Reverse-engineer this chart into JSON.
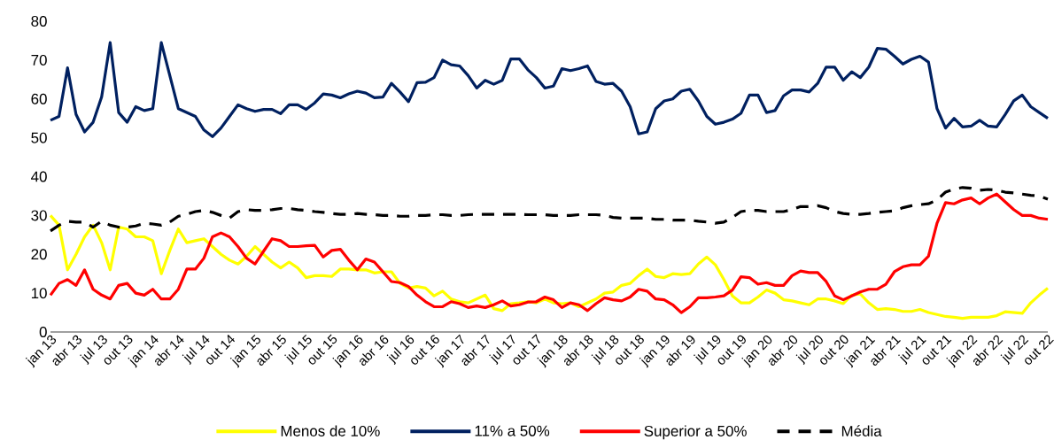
{
  "chart_data": {
    "type": "line",
    "categories": [
      "jan 13",
      null,
      null,
      "abr 13",
      null,
      null,
      "jul 13",
      null,
      null,
      "out 13",
      null,
      null,
      "jan 14",
      null,
      null,
      "abr 14",
      null,
      null,
      "jul 14",
      null,
      null,
      "out 14",
      null,
      null,
      "jan 15",
      null,
      null,
      "abr 15",
      null,
      null,
      "jul 15",
      null,
      null,
      "out 15",
      null,
      null,
      "jan 16",
      null,
      null,
      "abr 16",
      null,
      null,
      "jul 16",
      null,
      null,
      "out 16",
      null,
      null,
      "jan 17",
      null,
      null,
      "abr 17",
      null,
      null,
      "jul 17",
      null,
      null,
      "out 17",
      null,
      null,
      "jan 18",
      null,
      null,
      "abr 18",
      null,
      null,
      "jul 18",
      null,
      null,
      "out 18",
      null,
      null,
      "jan 19",
      null,
      null,
      "abr 19",
      null,
      null,
      "jul 19",
      null,
      null,
      "out 19",
      null,
      null,
      "jan 20",
      null,
      null,
      "abr 20",
      null,
      null,
      "jul 20",
      null,
      null,
      "out 20",
      null,
      null,
      "jan 21",
      null,
      null,
      "abr 21",
      null,
      null,
      "jul 21",
      null,
      null,
      "out 21",
      null,
      null,
      "jan 22",
      null,
      null,
      "abr 22",
      null,
      null,
      "jul 22",
      null,
      null,
      "out 22"
    ],
    "series": [
      {
        "name": "Menos de 10%",
        "color": "#ffff00",
        "line_style": "solid",
        "values": [
          30,
          27.5,
          16,
          20,
          24.5,
          27.5,
          23,
          16,
          27,
          26.5,
          24.5,
          24.5,
          23.5,
          15,
          21,
          26.5,
          23,
          23.5,
          24,
          22,
          20,
          18.5,
          17.5,
          19.5,
          22,
          20,
          18,
          16.5,
          18,
          16.5,
          14,
          14.5,
          14.5,
          14.3,
          16.2,
          16.2,
          16,
          16,
          15.2,
          15.5,
          15.5,
          12.5,
          11.3,
          11.7,
          11.3,
          9.3,
          10.5,
          8.5,
          7.8,
          7.5,
          8.5,
          9.5,
          6,
          5.5,
          7.3,
          7.5,
          7.8,
          7.5,
          8.5,
          7.5,
          7.3,
          7.5,
          6.5,
          7.5,
          8.5,
          10,
          10.3,
          12,
          12.5,
          14.5,
          16.2,
          14.3,
          14,
          15,
          14.8,
          15,
          17.5,
          19.3,
          17.3,
          13.5,
          9.3,
          7.5,
          7.5,
          9,
          10.8,
          10,
          8.3,
          8,
          7.5,
          7,
          8.5,
          8.5,
          8,
          7.3,
          9.5,
          9.8,
          7.5,
          5.8,
          6,
          5.8,
          5.3,
          5.3,
          5.8,
          5,
          4.5,
          4,
          3.8,
          3.5,
          3.8,
          3.8,
          3.8,
          4.2,
          5.2,
          5,
          4.8,
          7.5,
          9.5,
          11.3
        ]
      },
      {
        "name": "11% a 50%",
        "color": "#002060",
        "line_style": "solid",
        "values": [
          54.5,
          55.5,
          68,
          56,
          51.5,
          54,
          60.5,
          74.5,
          56.5,
          54,
          58,
          57,
          57.5,
          74.5,
          66,
          57.5,
          56.5,
          55.5,
          52,
          50.3,
          52.5,
          55.5,
          58.5,
          57.5,
          56.8,
          57.3,
          57.3,
          56.2,
          58.5,
          58.5,
          57.3,
          59,
          61.3,
          61,
          60.3,
          61.3,
          62,
          61.5,
          60.3,
          60.5,
          64,
          61.8,
          59.3,
          64.2,
          64.3,
          65.5,
          70,
          68.8,
          68.5,
          66,
          62.8,
          64.8,
          63.8,
          64.8,
          70.3,
          70.3,
          67.5,
          65.5,
          62.8,
          63.3,
          67.8,
          67.3,
          67.8,
          68.5,
          64.5,
          63.8,
          64,
          62,
          58,
          51,
          51.5,
          57.5,
          59.5,
          60,
          62,
          62.5,
          59.5,
          55.5,
          53.5,
          54,
          54.8,
          56.3,
          61,
          61,
          56.5,
          57,
          60.8,
          62.3,
          62.3,
          61.8,
          64,
          68.2,
          68.2,
          64.8,
          67,
          65.5,
          68.2,
          73,
          72.8,
          71,
          69,
          70.2,
          71,
          69.5,
          57.5,
          52.5,
          55,
          52.8,
          53,
          54.5,
          53,
          52.8,
          56,
          59.5,
          61,
          58,
          56.5,
          55
        ]
      },
      {
        "name": "Superior a 50%",
        "color": "#ff0000",
        "line_style": "solid",
        "values": [
          9.5,
          12.5,
          13.5,
          12,
          16,
          11,
          9.5,
          8.5,
          12,
          12.5,
          10,
          9.5,
          11,
          8.5,
          8.5,
          11,
          16.2,
          16.2,
          19,
          24.5,
          25.5,
          24.5,
          22,
          19,
          17.5,
          20.8,
          24,
          23.5,
          22,
          22,
          22.2,
          22.3,
          19.3,
          21,
          21.3,
          18.5,
          16,
          18.8,
          18,
          15.5,
          13,
          12.7,
          11.7,
          9.5,
          7.8,
          6.5,
          6.5,
          7.8,
          7.3,
          6.3,
          6.7,
          6.3,
          7,
          8,
          6.7,
          7,
          7.7,
          7.8,
          9,
          8.3,
          6.3,
          7.5,
          7,
          5.5,
          7.3,
          8.8,
          8.3,
          8,
          9,
          11,
          10.5,
          8.5,
          8.3,
          7,
          5,
          6.5,
          8.8,
          8.8,
          9,
          9.3,
          10.8,
          14.2,
          14,
          12.3,
          12.7,
          12,
          12,
          14.5,
          15.7,
          15.3,
          15.3,
          13,
          9.3,
          8.3,
          9.3,
          10.3,
          11,
          11,
          12.3,
          15.5,
          16.8,
          17.3,
          17.3,
          19.5,
          28,
          33.3,
          33,
          34,
          34.5,
          33,
          34.5,
          35.5,
          33.5,
          31.5,
          30,
          30,
          29.3,
          29
        ]
      },
      {
        "name": "Média",
        "color": "#000000",
        "line_style": "dashed",
        "values": [
          26,
          27.5,
          28.5,
          28.3,
          28.3,
          27,
          28.5,
          27.5,
          27,
          27,
          27.3,
          28,
          27.8,
          27.5,
          28.3,
          29.8,
          30.3,
          31,
          31.3,
          30.8,
          30,
          29.3,
          31,
          31.5,
          31.3,
          31.3,
          31.5,
          31.8,
          31.8,
          31.5,
          31.3,
          31,
          30.8,
          30.5,
          30.3,
          30.3,
          30.5,
          30.3,
          30.2,
          30,
          30,
          29.8,
          29.8,
          30,
          30,
          30.2,
          30.2,
          30,
          30,
          30.2,
          30.3,
          30.3,
          30.3,
          30.3,
          30.3,
          30.3,
          30.2,
          30.2,
          30.2,
          30,
          30,
          30,
          30.2,
          30.2,
          30.2,
          30,
          29.5,
          29.3,
          29.3,
          29.3,
          29.3,
          29,
          29,
          28.8,
          28.8,
          28.8,
          28.5,
          28.3,
          28,
          28.3,
          29.5,
          31,
          31.3,
          31.3,
          31,
          31,
          31,
          31.5,
          32.3,
          32.3,
          32.5,
          32,
          31,
          30.5,
          30.3,
          30.3,
          30.5,
          30.8,
          31,
          31.2,
          32,
          32.5,
          32.8,
          33,
          34,
          36,
          36.8,
          37.2,
          37,
          36.5,
          36.7,
          36.5,
          36,
          35.8,
          35.5,
          35.2,
          35,
          34.2
        ]
      }
    ],
    "ylim": [
      0,
      80
    ],
    "yticks": [
      0,
      10,
      20,
      30,
      40,
      50,
      60,
      70,
      80
    ],
    "legend": "bottom",
    "marker": "none"
  }
}
